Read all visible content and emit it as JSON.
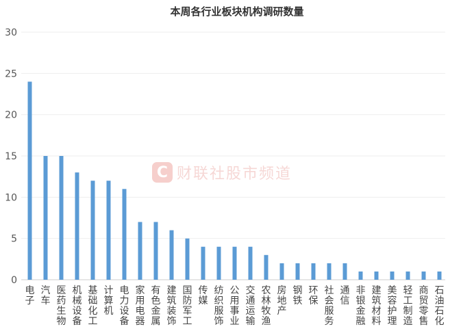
{
  "chart_data": {
    "type": "bar",
    "title": "本周各行业板块机构调研数量",
    "xlabel": "",
    "ylabel": "",
    "ylim": [
      0,
      30
    ],
    "yticks": [
      0,
      5,
      10,
      15,
      20,
      25,
      30
    ],
    "grid": true,
    "bar_color": "#5b9bd5",
    "categories": [
      "电子",
      "汽车",
      "医药生物",
      "机械设备",
      "基础化工",
      "计算机",
      "电力设备",
      "家用电器",
      "有色金属",
      "建筑装饰",
      "国防军工",
      "传媒",
      "纺织服饰",
      "公用事业",
      "交通运输",
      "农林牧渔",
      "房地产",
      "钢铁",
      "环保",
      "社会服务",
      "通信",
      "非银金融",
      "建筑材料",
      "美容护理",
      "轻工制造",
      "商贸零售",
      "石油石化"
    ],
    "values": [
      24,
      15,
      15,
      13,
      12,
      12,
      11,
      7,
      7,
      6,
      5,
      4,
      4,
      4,
      4,
      3,
      2,
      2,
      2,
      2,
      2,
      1,
      1,
      1,
      1,
      1,
      1
    ]
  },
  "watermark": {
    "logo": "C",
    "text": "财联社股市频道"
  }
}
